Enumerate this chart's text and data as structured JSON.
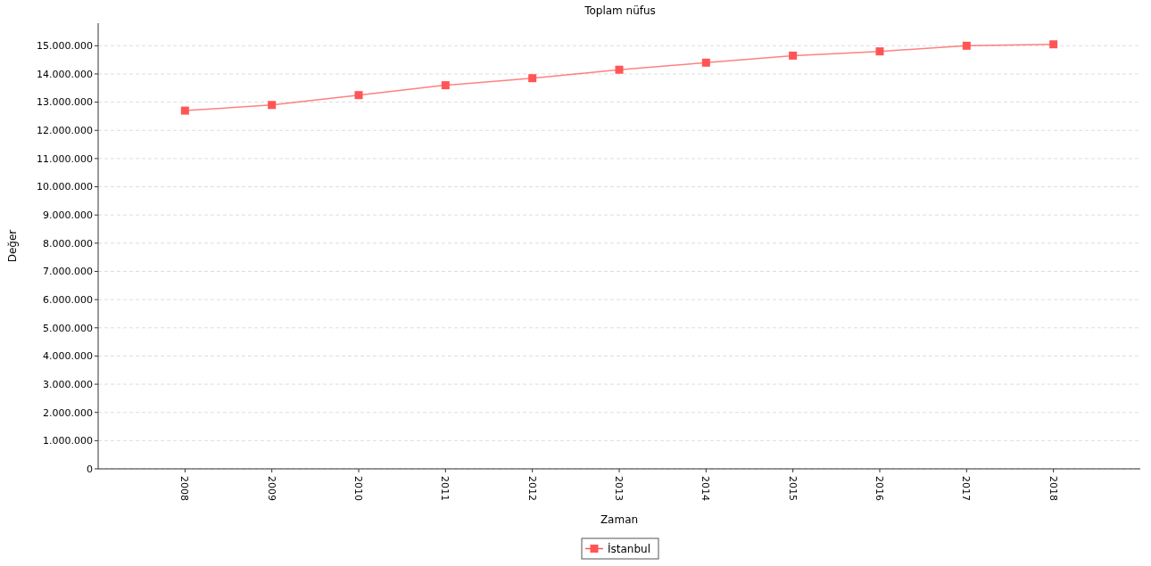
{
  "chart_data": {
    "type": "line",
    "title": "Toplam nüfus",
    "xlabel": "Zaman",
    "ylabel": "Değer",
    "categories": [
      "2008",
      "2009",
      "2010",
      "2011",
      "2012",
      "2013",
      "2014",
      "2015",
      "2016",
      "2017",
      "2018"
    ],
    "series": [
      {
        "name": "İstanbul",
        "color": "#ff5555",
        "values": [
          12700000,
          12900000,
          13250000,
          13600000,
          13850000,
          14150000,
          14400000,
          14650000,
          14800000,
          15000000,
          15050000
        ]
      }
    ],
    "ylim": [
      0,
      15800000
    ],
    "yticks": [
      0,
      {
        "value": 1000000,
        "label": "1.000.000"
      },
      {
        "value": 2000000,
        "label": "2.000.000"
      },
      {
        "value": 3000000,
        "label": "3.000.000"
      },
      {
        "value": 4000000,
        "label": "4.000.000"
      },
      {
        "value": 5000000,
        "label": "5.000.000"
      },
      {
        "value": 6000000,
        "label": "6.000.000"
      },
      {
        "value": 7000000,
        "label": "7.000.000"
      },
      {
        "value": 8000000,
        "label": "8.000.000"
      },
      {
        "value": 9000000,
        "label": "9.000.000"
      },
      {
        "value": 10000000,
        "label": "10.000.000"
      },
      {
        "value": 11000000,
        "label": "11.000.000"
      },
      {
        "value": 12000000,
        "label": "12.000.000"
      },
      {
        "value": 13000000,
        "label": "13.000.000"
      },
      {
        "value": 14000000,
        "label": "14.000.000"
      },
      {
        "value": 15000000,
        "label": "15.000.000"
      }
    ],
    "grid": "y",
    "legend": "bottom",
    "marker": "square",
    "line_style": "solid"
  }
}
